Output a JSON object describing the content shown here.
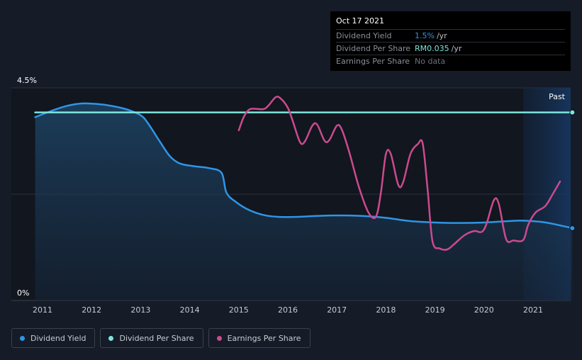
{
  "chart_data": {
    "type": "line",
    "title": "",
    "xlabel": "",
    "ylabel": "",
    "ylim": [
      0,
      4.5
    ],
    "y_tick_labels": [
      "4.5%",
      "0%"
    ],
    "x_ticks": [
      2011,
      2012,
      2013,
      2014,
      2015,
      2016,
      2017,
      2018,
      2019,
      2020,
      2021
    ],
    "x_range": [
      2010.6,
      2021.8
    ],
    "past_label": "Past",
    "past_region_start": 2020.8,
    "grid": true,
    "legend_position": "bottom-left",
    "series": [
      {
        "name": "Dividend Yield",
        "color": "#2f95e6",
        "fill": true,
        "points": [
          [
            2010.85,
            3.88
          ],
          [
            2011.2,
            4.02
          ],
          [
            2011.5,
            4.12
          ],
          [
            2011.8,
            4.17
          ],
          [
            2012.1,
            4.16
          ],
          [
            2012.4,
            4.12
          ],
          [
            2012.7,
            4.05
          ],
          [
            2013.0,
            3.92
          ],
          [
            2013.15,
            3.75
          ],
          [
            2013.4,
            3.35
          ],
          [
            2013.6,
            3.05
          ],
          [
            2013.8,
            2.9
          ],
          [
            2014.1,
            2.84
          ],
          [
            2014.4,
            2.8
          ],
          [
            2014.65,
            2.7
          ],
          [
            2014.75,
            2.28
          ],
          [
            2014.95,
            2.08
          ],
          [
            2015.2,
            1.92
          ],
          [
            2015.5,
            1.81
          ],
          [
            2015.8,
            1.77
          ],
          [
            2016.2,
            1.77
          ],
          [
            2016.6,
            1.79
          ],
          [
            2017.0,
            1.8
          ],
          [
            2017.5,
            1.79
          ],
          [
            2018.0,
            1.75
          ],
          [
            2018.5,
            1.68
          ],
          [
            2019.0,
            1.65
          ],
          [
            2019.5,
            1.64
          ],
          [
            2020.0,
            1.65
          ],
          [
            2020.5,
            1.68
          ],
          [
            2020.8,
            1.69
          ],
          [
            2021.2,
            1.66
          ],
          [
            2021.5,
            1.6
          ],
          [
            2021.8,
            1.53
          ]
        ]
      },
      {
        "name": "Dividend Per Share",
        "color": "#7ee6dc",
        "fill": false,
        "points": [
          [
            2010.85,
            3.98
          ],
          [
            2021.8,
            3.98
          ]
        ]
      },
      {
        "name": "Earnings Per Share",
        "color": "#cc4a8e",
        "fill": false,
        "points": [
          [
            2015.0,
            3.6
          ],
          [
            2015.1,
            3.88
          ],
          [
            2015.2,
            4.03
          ],
          [
            2015.3,
            4.06
          ],
          [
            2015.5,
            4.05
          ],
          [
            2015.6,
            4.12
          ],
          [
            2015.75,
            4.3
          ],
          [
            2015.85,
            4.28
          ],
          [
            2016.0,
            4.08
          ],
          [
            2016.1,
            3.8
          ],
          [
            2016.25,
            3.35
          ],
          [
            2016.35,
            3.37
          ],
          [
            2016.5,
            3.7
          ],
          [
            2016.6,
            3.72
          ],
          [
            2016.75,
            3.38
          ],
          [
            2016.85,
            3.4
          ],
          [
            2017.0,
            3.7
          ],
          [
            2017.1,
            3.62
          ],
          [
            2017.25,
            3.15
          ],
          [
            2017.45,
            2.4
          ],
          [
            2017.65,
            1.85
          ],
          [
            2017.8,
            1.78
          ],
          [
            2017.9,
            2.3
          ],
          [
            2018.0,
            3.1
          ],
          [
            2018.1,
            3.1
          ],
          [
            2018.25,
            2.45
          ],
          [
            2018.35,
            2.5
          ],
          [
            2018.5,
            3.1
          ],
          [
            2018.65,
            3.31
          ],
          [
            2018.75,
            3.32
          ],
          [
            2018.85,
            2.35
          ],
          [
            2018.95,
            1.25
          ],
          [
            2019.1,
            1.1
          ],
          [
            2019.25,
            1.08
          ],
          [
            2019.4,
            1.2
          ],
          [
            2019.6,
            1.38
          ],
          [
            2019.8,
            1.47
          ],
          [
            2019.95,
            1.45
          ],
          [
            2020.05,
            1.62
          ],
          [
            2020.2,
            2.12
          ],
          [
            2020.3,
            2.05
          ],
          [
            2020.45,
            1.3
          ],
          [
            2020.6,
            1.27
          ],
          [
            2020.8,
            1.28
          ],
          [
            2020.9,
            1.6
          ],
          [
            2021.05,
            1.86
          ],
          [
            2021.25,
            2.0
          ],
          [
            2021.4,
            2.25
          ],
          [
            2021.55,
            2.52
          ]
        ]
      }
    ],
    "end_markers": [
      {
        "series": "Dividend Yield",
        "x": 2021.8,
        "y": 1.53
      },
      {
        "series": "Dividend Per Share",
        "x": 2021.8,
        "y": 3.98
      }
    ]
  },
  "tooltip": {
    "date": "Oct 17 2021",
    "rows": [
      {
        "label": "Dividend Yield",
        "value": "1.5%",
        "unit": "/yr",
        "color": "#2f95e6"
      },
      {
        "label": "Dividend Per Share",
        "value": "RM0.035",
        "unit": "/yr",
        "color": "#7ee6dc"
      },
      {
        "label": "Earnings Per Share",
        "value": "No data",
        "unit": "",
        "color": "#6b7079"
      }
    ]
  },
  "legend": [
    {
      "label": "Dividend Yield",
      "color": "#2f95e6"
    },
    {
      "label": "Dividend Per Share",
      "color": "#7ee6dc"
    },
    {
      "label": "Earnings Per Share",
      "color": "#cc4a8e"
    }
  ]
}
